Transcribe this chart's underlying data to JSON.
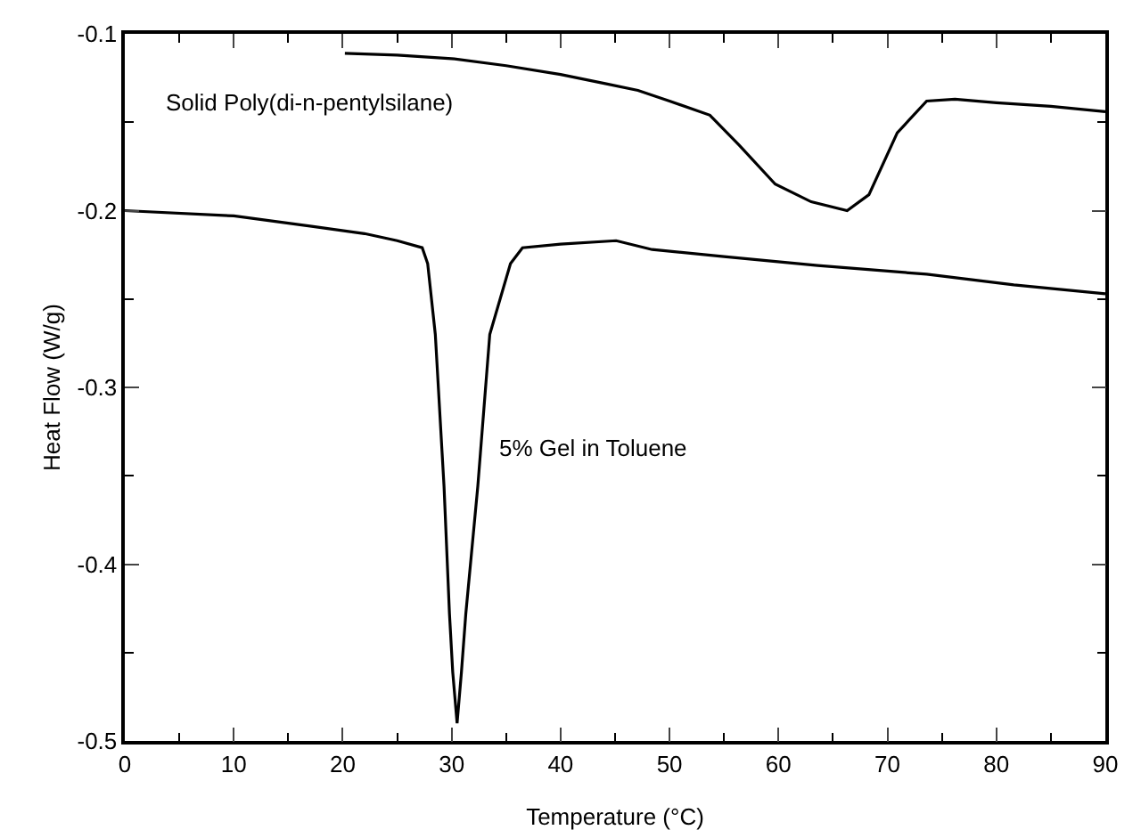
{
  "chart_data": {
    "type": "line",
    "xlabel": "Temperature (°C)",
    "ylabel": "Heat Flow (W/g)",
    "xlim": [
      0,
      90
    ],
    "ylim": [
      -0.5,
      -0.1
    ],
    "xticks": [
      0,
      {
        "value": 5,
        "label": null
      },
      10,
      {
        "value": 15,
        "label": null
      },
      20,
      {
        "value": 25,
        "label": null
      },
      30,
      {
        "value": 35,
        "label": null
      },
      40,
      {
        "value": 45,
        "label": null
      },
      50,
      {
        "value": 55,
        "label": null
      },
      60,
      {
        "value": 65,
        "label": null
      },
      70,
      {
        "value": 75,
        "label": null
      },
      80,
      {
        "value": 85,
        "label": null
      },
      90
    ],
    "yticks": [
      -0.5,
      {
        "value": -0.45,
        "label": null
      },
      -0.4,
      {
        "value": -0.35,
        "label": null
      },
      -0.3,
      {
        "value": -0.25,
        "label": null
      },
      -0.2,
      {
        "value": -0.15,
        "label": null
      },
      -0.1
    ],
    "grid": false,
    "legend": false,
    "marker": "none",
    "line_style": "solid",
    "series": [
      {
        "name": "Solid Poly(di-n-pentylsilane)",
        "color": "#000000",
        "x": [
          20.2,
          25,
          30,
          35,
          40,
          44,
          47.1,
          50,
          53.7,
          56.4,
          59.7,
          63,
          66.3,
          68.3,
          70.9,
          73.6,
          76.2,
          80,
          85,
          90
        ],
        "values": [
          -0.111,
          -0.112,
          -0.114,
          -0.118,
          -0.123,
          -0.128,
          -0.132,
          -0.138,
          -0.146,
          -0.163,
          -0.185,
          -0.195,
          -0.2,
          -0.191,
          -0.156,
          -0.138,
          -0.137,
          -0.139,
          -0.141,
          -0.144
        ]
      },
      {
        "name": "5% Gel in Toluene",
        "color": "#000000",
        "x": [
          0,
          10,
          17.3,
          22,
          25,
          27.3,
          27.8,
          28.5,
          29.3,
          29.8,
          30.1,
          30.5,
          30.9,
          31.3,
          32.4,
          33.5,
          35.4,
          36.5,
          40,
          45.1,
          48.4,
          55,
          63.6,
          73.6,
          81.6,
          90
        ],
        "values": [
          -0.2,
          -0.203,
          -0.209,
          -0.213,
          -0.217,
          -0.221,
          -0.23,
          -0.27,
          -0.356,
          -0.428,
          -0.461,
          -0.49,
          -0.461,
          -0.428,
          -0.356,
          -0.27,
          -0.23,
          -0.221,
          -0.219,
          -0.217,
          -0.222,
          -0.226,
          -0.231,
          -0.236,
          -0.242,
          -0.247
        ]
      }
    ]
  }
}
